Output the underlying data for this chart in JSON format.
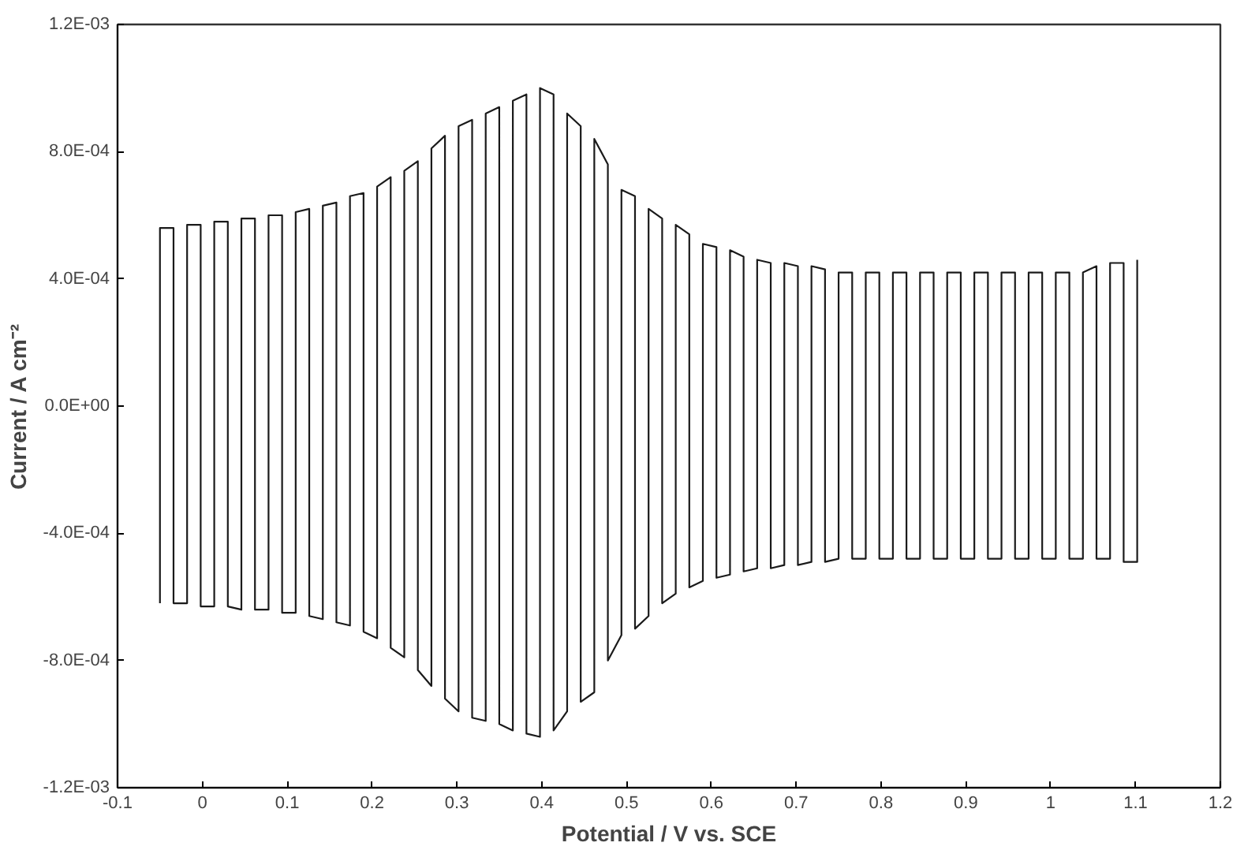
{
  "chart_data": {
    "type": "line",
    "xlabel": "Potential / V vs. SCE",
    "ylabel": "Current / A cm⁻²",
    "xlim": [
      -0.1,
      1.2
    ],
    "xticks": [
      -0.1,
      0,
      0.1,
      0.2,
      0.3,
      0.4,
      0.5,
      0.6,
      0.7,
      0.8,
      0.9,
      1,
      1.1,
      1.2
    ],
    "ylim": [
      -0.0012,
      0.0012
    ],
    "yticks": [
      {
        "value": -0.0012,
        "label": "-1.2E-03"
      },
      {
        "value": -0.0008,
        "label": "-8.0E-04"
      },
      {
        "value": -0.0004,
        "label": "-4.0E-04"
      },
      {
        "value": 0,
        "label": "0.0E+00"
      },
      {
        "value": 0.0004,
        "label": "4.0E-04"
      },
      {
        "value": 0.0008,
        "label": "8.0E-04"
      },
      {
        "value": 0.0012,
        "label": "1.2E-03"
      }
    ],
    "grid": false,
    "marker": "none",
    "line_style": "solid",
    "series": [
      {
        "color": "#1a1a1a",
        "x": [
          -0.05,
          -0.05,
          -0.034,
          -0.034,
          -0.018,
          -0.018,
          -0.002,
          -0.002,
          0.014,
          0.014,
          0.03,
          0.03,
          0.046,
          0.046,
          0.062,
          0.062,
          0.078,
          0.078,
          0.094,
          0.094,
          0.11,
          0.11,
          0.126,
          0.126,
          0.142,
          0.142,
          0.158,
          0.158,
          0.174,
          0.174,
          0.19,
          0.19,
          0.206,
          0.206,
          0.222,
          0.222,
          0.238,
          0.238,
          0.254,
          0.254,
          0.27,
          0.27,
          0.286,
          0.286,
          0.302,
          0.302,
          0.318,
          0.318,
          0.334,
          0.334,
          0.35,
          0.35,
          0.366,
          0.366,
          0.382,
          0.382,
          0.398,
          0.398,
          0.414,
          0.414,
          0.43,
          0.43,
          0.446,
          0.446,
          0.462,
          0.462,
          0.478,
          0.478,
          0.494,
          0.494,
          0.51,
          0.51,
          0.526,
          0.526,
          0.542,
          0.542,
          0.558,
          0.558,
          0.574,
          0.574,
          0.59,
          0.59,
          0.606,
          0.606,
          0.622,
          0.622,
          0.638,
          0.638,
          0.654,
          0.654,
          0.67,
          0.67,
          0.686,
          0.686,
          0.702,
          0.702,
          0.718,
          0.718,
          0.734,
          0.734,
          0.75,
          0.75,
          0.766,
          0.766,
          0.782,
          0.782,
          0.798,
          0.798,
          0.814,
          0.814,
          0.83,
          0.83,
          0.846,
          0.846,
          0.862,
          0.862,
          0.878,
          0.878,
          0.894,
          0.894,
          0.91,
          0.91,
          0.926,
          0.926,
          0.942,
          0.942,
          0.958,
          0.958,
          0.974,
          0.974,
          0.99,
          0.99,
          1.006,
          1.006,
          1.022,
          1.022,
          1.038,
          1.038,
          1.054,
          1.054,
          1.07,
          1.07,
          1.086,
          1.086,
          1.102,
          1.102
        ],
        "values": [
          -0.00062,
          0.00056,
          0.00056,
          -0.00062,
          -0.00062,
          0.00057,
          0.00057,
          -0.00063,
          -0.00063,
          0.00058,
          0.00058,
          -0.00063,
          -0.00064,
          0.00059,
          0.00059,
          -0.00064,
          -0.00064,
          0.0006,
          0.0006,
          -0.00065,
          -0.00065,
          0.00061,
          0.00062,
          -0.00066,
          -0.00067,
          0.00063,
          0.00064,
          -0.00068,
          -0.00069,
          0.00066,
          0.00067,
          -0.00071,
          -0.00073,
          0.00069,
          0.00072,
          -0.00076,
          -0.00079,
          0.00074,
          0.00077,
          -0.00083,
          -0.00088,
          0.00081,
          0.00085,
          -0.00092,
          -0.00096,
          0.00088,
          0.0009,
          -0.00098,
          -0.00099,
          0.00092,
          0.00094,
          -0.001,
          -0.00102,
          0.00096,
          0.00098,
          -0.00103,
          -0.00104,
          0.001,
          0.00098,
          -0.00102,
          -0.00096,
          0.00092,
          0.00088,
          -0.00093,
          -0.0009,
          0.00084,
          0.00076,
          -0.0008,
          -0.00072,
          0.00068,
          0.00066,
          -0.0007,
          -0.00066,
          0.00062,
          0.00059,
          -0.00062,
          -0.00059,
          0.00057,
          0.00054,
          -0.00057,
          -0.00055,
          0.00051,
          0.0005,
          -0.00054,
          -0.00053,
          0.00049,
          0.00047,
          -0.00052,
          -0.00051,
          0.00046,
          0.00045,
          -0.00051,
          -0.0005,
          0.00045,
          0.00044,
          -0.0005,
          -0.00049,
          0.00044,
          0.00043,
          -0.00049,
          -0.00048,
          0.00042,
          0.00042,
          -0.00048,
          -0.00048,
          0.00042,
          0.00042,
          -0.00048,
          -0.00048,
          0.00042,
          0.00042,
          -0.00048,
          -0.00048,
          0.00042,
          0.00042,
          -0.00048,
          -0.00048,
          0.00042,
          0.00042,
          -0.00048,
          -0.00048,
          0.00042,
          0.00042,
          -0.00048,
          -0.00048,
          0.00042,
          0.00042,
          -0.00048,
          -0.00048,
          0.00042,
          0.00042,
          -0.00048,
          -0.00048,
          0.00042,
          0.00042,
          -0.00048,
          -0.00048,
          0.00042,
          0.00044,
          -0.00048,
          -0.00048,
          0.00045,
          0.00045,
          -0.00049,
          -0.00049,
          0.00046
        ]
      }
    ]
  }
}
